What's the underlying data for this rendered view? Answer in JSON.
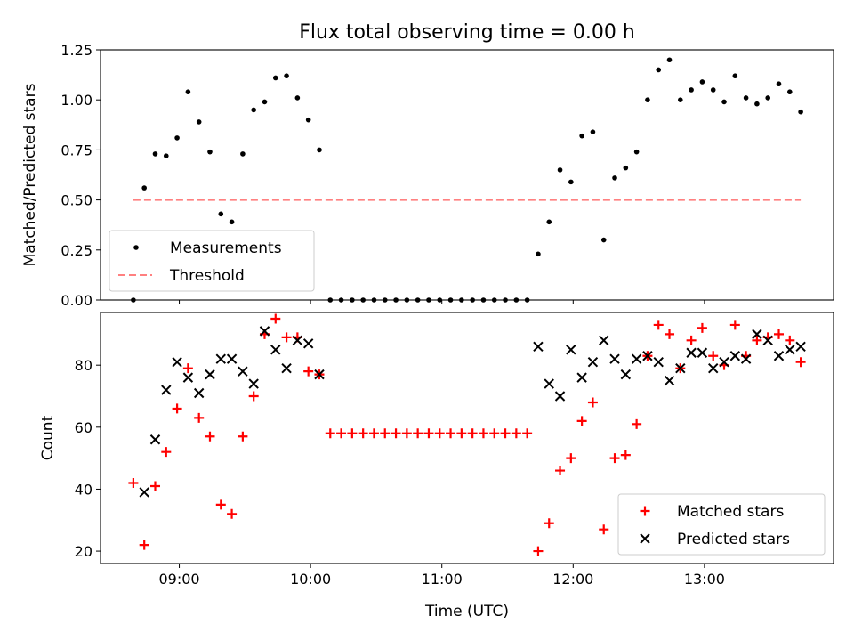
{
  "figure": {
    "title": "Flux total observing time = 0.00 h",
    "xlabel": "Time (UTC)"
  },
  "chart_data": [
    {
      "type": "scatter",
      "title": "Flux total observing time = 0.00 h",
      "xlabel": "",
      "ylabel": "Matched/Predicted stars",
      "xlim": [
        "08:24",
        "13:59"
      ],
      "ylim": [
        0,
        1.25
      ],
      "yticks": [
        0.0,
        0.25,
        0.5,
        0.75,
        1.0,
        1.25
      ],
      "ytick_labels": [
        "0.00",
        "0.25",
        "0.50",
        "0.75",
        "1.00",
        "1.25"
      ],
      "xticks": [
        "09:00",
        "10:00",
        "11:00",
        "12:00",
        "13:00"
      ],
      "grid": false,
      "legend_position": "lower-left",
      "series": [
        {
          "name": "Measurements",
          "kind": "scatter",
          "marker": "dot",
          "color": "#000000",
          "points": [
            [
              "08:39",
              0.0
            ],
            [
              "08:44",
              0.56
            ],
            [
              "08:49",
              0.73
            ],
            [
              "08:54",
              0.72
            ],
            [
              "08:59",
              0.81
            ],
            [
              "09:04",
              1.04
            ],
            [
              "09:09",
              0.89
            ],
            [
              "09:14",
              0.74
            ],
            [
              "09:19",
              0.43
            ],
            [
              "09:24",
              0.39
            ],
            [
              "09:29",
              0.73
            ],
            [
              "09:34",
              0.95
            ],
            [
              "09:39",
              0.99
            ],
            [
              "09:44",
              1.11
            ],
            [
              "09:49",
              1.12
            ],
            [
              "09:54",
              1.01
            ],
            [
              "09:59",
              0.9
            ],
            [
              "10:04",
              0.75
            ],
            [
              "10:09",
              0.0
            ],
            [
              "10:14",
              0.0
            ],
            [
              "10:19",
              0.0
            ],
            [
              "10:24",
              0.0
            ],
            [
              "10:29",
              0.0
            ],
            [
              "10:34",
              0.0
            ],
            [
              "10:39",
              0.0
            ],
            [
              "10:44",
              0.0
            ],
            [
              "10:49",
              0.0
            ],
            [
              "10:54",
              0.0
            ],
            [
              "10:59",
              0.0
            ],
            [
              "11:04",
              0.0
            ],
            [
              "11:09",
              0.0
            ],
            [
              "11:14",
              0.0
            ],
            [
              "11:19",
              0.0
            ],
            [
              "11:24",
              0.0
            ],
            [
              "11:29",
              0.0
            ],
            [
              "11:34",
              0.0
            ],
            [
              "11:39",
              0.0
            ],
            [
              "11:44",
              0.23
            ],
            [
              "11:49",
              0.39
            ],
            [
              "11:54",
              0.65
            ],
            [
              "11:59",
              0.59
            ],
            [
              "12:04",
              0.82
            ],
            [
              "12:09",
              0.84
            ],
            [
              "12:14",
              0.3
            ],
            [
              "12:19",
              0.61
            ],
            [
              "12:24",
              0.66
            ],
            [
              "12:29",
              0.74
            ],
            [
              "12:34",
              1.0
            ],
            [
              "12:39",
              1.15
            ],
            [
              "12:44",
              1.2
            ],
            [
              "12:49",
              1.0
            ],
            [
              "12:54",
              1.05
            ],
            [
              "12:59",
              1.09
            ],
            [
              "13:04",
              1.05
            ],
            [
              "13:09",
              0.99
            ],
            [
              "13:14",
              1.12
            ],
            [
              "13:19",
              1.01
            ],
            [
              "13:24",
              0.98
            ],
            [
              "13:29",
              1.01
            ],
            [
              "13:34",
              1.08
            ],
            [
              "13:39",
              1.04
            ],
            [
              "13:44",
              0.94
            ]
          ]
        },
        {
          "name": "Threshold",
          "kind": "line",
          "style": "dashed",
          "color": "#ff8080",
          "points": [
            [
              "08:39",
              0.5
            ],
            [
              "13:44",
              0.5
            ]
          ]
        }
      ]
    },
    {
      "type": "scatter",
      "title": "",
      "xlabel": "Time (UTC)",
      "ylabel": "Count",
      "xlim": [
        "08:24",
        "13:59"
      ],
      "ylim": [
        16,
        97
      ],
      "yticks": [
        20,
        40,
        60,
        80
      ],
      "ytick_labels": [
        "20",
        "40",
        "60",
        "80"
      ],
      "xticks": [
        "09:00",
        "10:00",
        "11:00",
        "12:00",
        "13:00"
      ],
      "grid": false,
      "legend_position": "lower-right",
      "series": [
        {
          "name": "Matched stars",
          "kind": "scatter",
          "marker": "plus",
          "color": "#ff0000",
          "points": [
            [
              "08:39",
              42
            ],
            [
              "08:44",
              22
            ],
            [
              "08:49",
              41
            ],
            [
              "08:54",
              52
            ],
            [
              "08:59",
              66
            ],
            [
              "09:04",
              79
            ],
            [
              "09:09",
              63
            ],
            [
              "09:14",
              57
            ],
            [
              "09:19",
              35
            ],
            [
              "09:24",
              32
            ],
            [
              "09:29",
              57
            ],
            [
              "09:34",
              70
            ],
            [
              "09:39",
              90
            ],
            [
              "09:44",
              95
            ],
            [
              "09:49",
              89
            ],
            [
              "09:54",
              89
            ],
            [
              "09:59",
              78
            ],
            [
              "10:04",
              77
            ],
            [
              "10:09",
              58
            ],
            [
              "10:14",
              58
            ],
            [
              "10:19",
              58
            ],
            [
              "10:24",
              58
            ],
            [
              "10:29",
              58
            ],
            [
              "10:34",
              58
            ],
            [
              "10:39",
              58
            ],
            [
              "10:44",
              58
            ],
            [
              "10:49",
              58
            ],
            [
              "10:54",
              58
            ],
            [
              "10:59",
              58
            ],
            [
              "11:04",
              58
            ],
            [
              "11:09",
              58
            ],
            [
              "11:14",
              58
            ],
            [
              "11:19",
              58
            ],
            [
              "11:24",
              58
            ],
            [
              "11:29",
              58
            ],
            [
              "11:34",
              58
            ],
            [
              "11:39",
              58
            ],
            [
              "11:44",
              20
            ],
            [
              "11:49",
              29
            ],
            [
              "11:54",
              46
            ],
            [
              "11:59",
              50
            ],
            [
              "12:04",
              62
            ],
            [
              "12:09",
              68
            ],
            [
              "12:14",
              27
            ],
            [
              "12:19",
              50
            ],
            [
              "12:24",
              51
            ],
            [
              "12:29",
              61
            ],
            [
              "12:34",
              83
            ],
            [
              "12:39",
              93
            ],
            [
              "12:44",
              90
            ],
            [
              "12:49",
              79
            ],
            [
              "12:54",
              88
            ],
            [
              "12:59",
              92
            ],
            [
              "13:04",
              83
            ],
            [
              "13:09",
              80
            ],
            [
              "13:14",
              93
            ],
            [
              "13:19",
              83
            ],
            [
              "13:24",
              88
            ],
            [
              "13:29",
              89
            ],
            [
              "13:34",
              90
            ],
            [
              "13:39",
              88
            ],
            [
              "13:44",
              81
            ]
          ]
        },
        {
          "name": "Predicted stars",
          "kind": "scatter",
          "marker": "x",
          "color": "#000000",
          "points": [
            [
              "08:44",
              39
            ],
            [
              "08:49",
              56
            ],
            [
              "08:54",
              72
            ],
            [
              "08:59",
              81
            ],
            [
              "09:04",
              76
            ],
            [
              "09:09",
              71
            ],
            [
              "09:14",
              77
            ],
            [
              "09:19",
              82
            ],
            [
              "09:24",
              82
            ],
            [
              "09:29",
              78
            ],
            [
              "09:34",
              74
            ],
            [
              "09:39",
              91
            ],
            [
              "09:44",
              85
            ],
            [
              "09:49",
              79
            ],
            [
              "09:54",
              88
            ],
            [
              "09:59",
              87
            ],
            [
              "10:04",
              77
            ],
            [
              "11:44",
              86
            ],
            [
              "11:49",
              74
            ],
            [
              "11:54",
              70
            ],
            [
              "11:59",
              85
            ],
            [
              "12:04",
              76
            ],
            [
              "12:09",
              81
            ],
            [
              "12:14",
              88
            ],
            [
              "12:19",
              82
            ],
            [
              "12:24",
              77
            ],
            [
              "12:29",
              82
            ],
            [
              "12:34",
              83
            ],
            [
              "12:39",
              81
            ],
            [
              "12:44",
              75
            ],
            [
              "12:49",
              79
            ],
            [
              "12:54",
              84
            ],
            [
              "12:59",
              84
            ],
            [
              "13:04",
              79
            ],
            [
              "13:09",
              81
            ],
            [
              "13:14",
              83
            ],
            [
              "13:19",
              82
            ],
            [
              "13:24",
              90
            ],
            [
              "13:29",
              88
            ],
            [
              "13:34",
              83
            ],
            [
              "13:39",
              85
            ],
            [
              "13:44",
              86
            ]
          ]
        }
      ]
    }
  ]
}
